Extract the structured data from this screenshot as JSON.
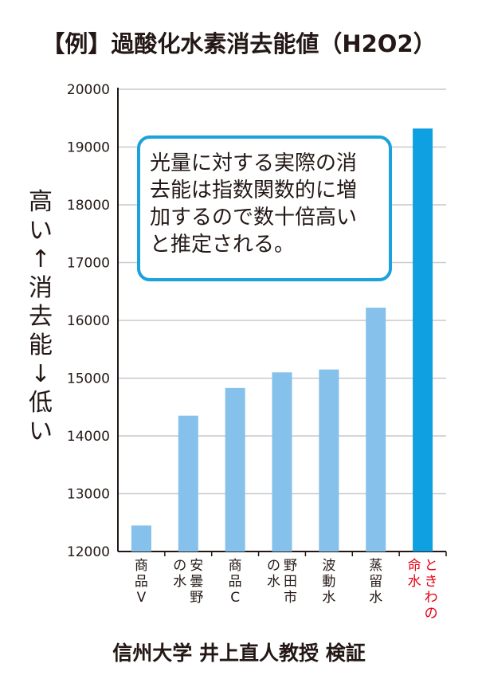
{
  "title": "【例】過酸化水素消去能値（H2O2）",
  "footer": "信州大学 井上直人教授 検証",
  "ylabel_lines": [
    "高い",
    "↑",
    "消去能",
    "↓",
    "低い"
  ],
  "callout_lines": [
    "光量に対する実際の消",
    "去能は指数関数的に増",
    "加するので数十倍高い",
    "と推定される。"
  ],
  "colors": {
    "bar": "#85c1ea",
    "highlight": "#0ea0e0",
    "highlight_label": "#e60012",
    "axis": "#231815",
    "grid": "#c8c9ca",
    "callout_border": "#1ba1dc"
  },
  "chart_data": {
    "type": "bar",
    "title": "【例】過酸化水素消去能値（H2O2）",
    "ylabel": "高い ↑ 消去能 ↓ 低い",
    "xlabel": "",
    "ylim": [
      12000,
      20000
    ],
    "yticks": [
      "12000",
      "13000",
      "14000",
      "15000",
      "16000",
      "17000",
      "18000",
      "19000",
      "20000"
    ],
    "grid": true,
    "categories": [
      {
        "label": "商品V",
        "columns": [
          "商品V"
        ],
        "value": 12450,
        "highlight": false
      },
      {
        "label": "安曇野の水",
        "columns": [
          "安曇野",
          "の水"
        ],
        "value": 14350,
        "highlight": false
      },
      {
        "label": "商品C",
        "columns": [
          "商品C"
        ],
        "value": 14830,
        "highlight": false
      },
      {
        "label": "野田市の水",
        "columns": [
          "野田市",
          "の水"
        ],
        "value": 15100,
        "highlight": false
      },
      {
        "label": "波動水",
        "columns": [
          "波動水"
        ],
        "value": 15150,
        "highlight": false
      },
      {
        "label": "蒸留水",
        "columns": [
          "蒸留水"
        ],
        "value": 16220,
        "highlight": false
      },
      {
        "label": "ときわの命水",
        "columns": [
          "ときわの",
          "命水"
        ],
        "value": 19320,
        "highlight": true
      }
    ]
  }
}
